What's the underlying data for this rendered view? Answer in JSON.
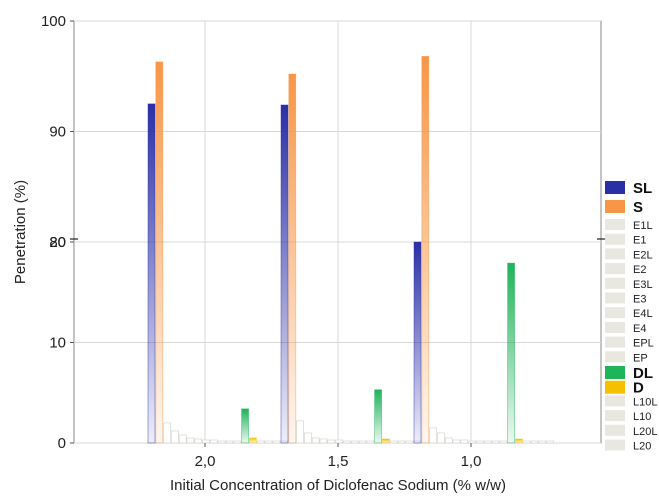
{
  "chart_data": {
    "type": "bar",
    "xlabel": "Initial Concentration of Diclofenac Sodium (% w/w)",
    "ylabel": "Penetration (%)",
    "categories": [
      "2,0",
      "1,5",
      "1,0"
    ],
    "broken_axis": true,
    "ylim_lower": [
      0,
      20
    ],
    "ylim_upper": [
      80,
      100
    ],
    "yticks_lower": [
      "0",
      "10",
      "20"
    ],
    "yticks_upper": [
      "80",
      "90",
      "100"
    ],
    "grid": true,
    "legend_position": "right",
    "series": [
      {
        "name": "SL",
        "color": "#2a2fa6",
        "bold": true,
        "values": [
          92.5,
          92.4,
          20.8
        ]
      },
      {
        "name": "S",
        "color": "#f79646",
        "bold": true,
        "values": [
          96.3,
          95.2,
          96.8
        ]
      },
      {
        "name": "E1L",
        "color": "#e8e8e0",
        "bold": false,
        "values": [
          2.0,
          2.2,
          1.5
        ]
      },
      {
        "name": "E1",
        "color": "#e8e8e0",
        "bold": false,
        "values": [
          1.2,
          1.0,
          1.0
        ]
      },
      {
        "name": "E2L",
        "color": "#e8e8e0",
        "bold": false,
        "values": [
          0.8,
          0.5,
          0.5
        ]
      },
      {
        "name": "E2",
        "color": "#e8e8e0",
        "bold": false,
        "values": [
          0.5,
          0.4,
          0.3
        ]
      },
      {
        "name": "E3L",
        "color": "#e8e8e0",
        "bold": false,
        "values": [
          0.4,
          0.3,
          0.3
        ]
      },
      {
        "name": "E3",
        "color": "#e8e8e0",
        "bold": false,
        "values": [
          0.3,
          0.3,
          0.2
        ]
      },
      {
        "name": "E4L",
        "color": "#e8e8e0",
        "bold": false,
        "values": [
          0.3,
          0.2,
          0.2
        ]
      },
      {
        "name": "E4",
        "color": "#e8e8e0",
        "bold": false,
        "values": [
          0.2,
          0.2,
          0.2
        ]
      },
      {
        "name": "EPL",
        "color": "#e8e8e0",
        "bold": false,
        "values": [
          0.2,
          0.2,
          0.2
        ]
      },
      {
        "name": "EP",
        "color": "#e8e8e0",
        "bold": false,
        "values": [
          0.2,
          0.2,
          0.2
        ]
      },
      {
        "name": "DL",
        "color": "#1fb35a",
        "bold": true,
        "values": [
          3.4,
          5.3,
          17.9
        ]
      },
      {
        "name": "D",
        "color": "#f5c000",
        "bold": true,
        "values": [
          0.5,
          0.4,
          0.4
        ]
      },
      {
        "name": "L10L",
        "color": "#e8e8e0",
        "bold": false,
        "values": [
          0.2,
          0.2,
          0.2
        ]
      },
      {
        "name": "L10",
        "color": "#e8e8e0",
        "bold": false,
        "values": [
          0.2,
          0.2,
          0.2
        ]
      },
      {
        "name": "L20L",
        "color": "#e8e8e0",
        "bold": false,
        "values": [
          0.2,
          0.2,
          0.2
        ]
      },
      {
        "name": "L20",
        "color": "#e8e8e0",
        "bold": false,
        "values": [
          0.2,
          0.2,
          0.2
        ]
      }
    ]
  }
}
